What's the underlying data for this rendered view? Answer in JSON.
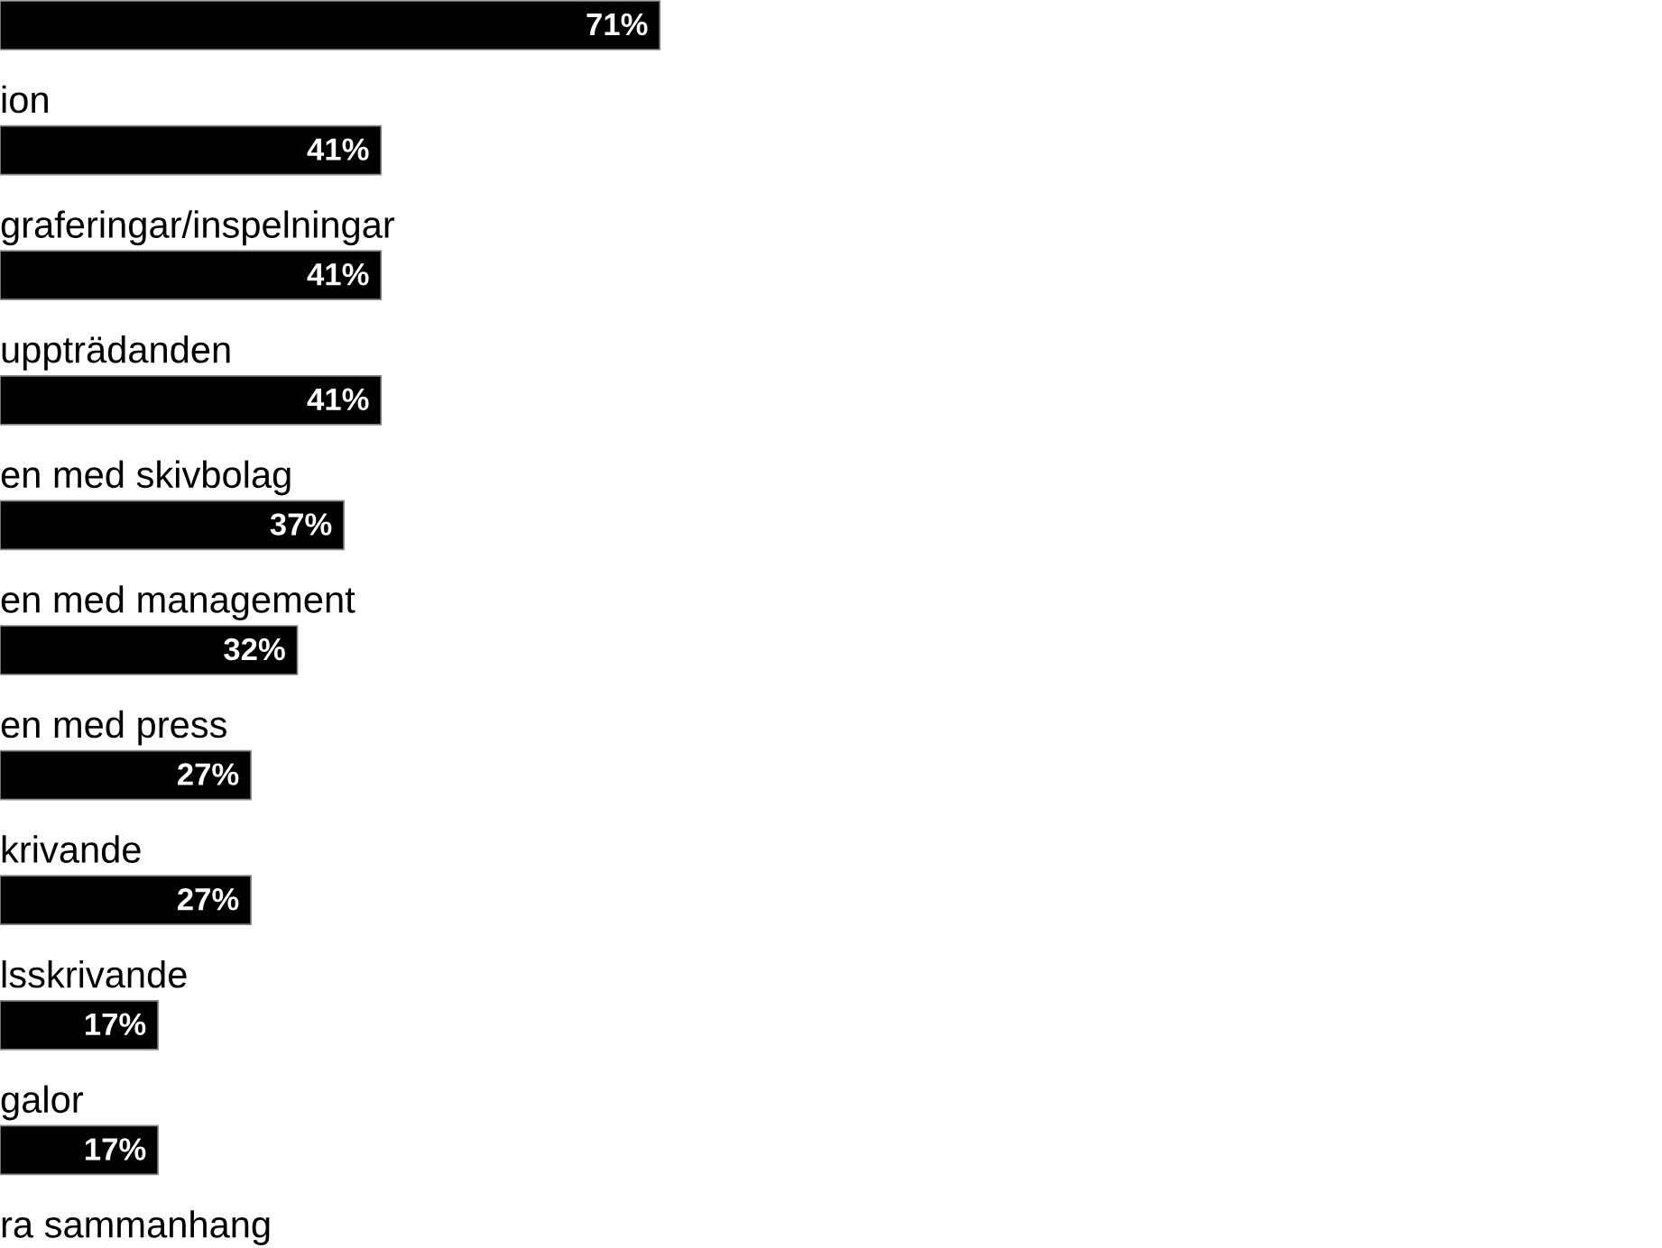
{
  "chart_data": {
    "type": "bar",
    "orientation": "horizontal",
    "categories": [
      null,
      "ion",
      "graferingar/inspelningar",
      "uppträdanden",
      "en med skivbolag",
      "en med management",
      "en med press",
      "krivande",
      "lsskrivande",
      "galor",
      "ra sammanhang"
    ],
    "values": [
      71,
      41,
      41,
      41,
      37,
      32,
      27,
      27,
      17,
      17,
      null
    ],
    "value_labels": [
      "71%",
      "41%",
      "41%",
      "41%",
      "37%",
      "32%",
      "27%",
      "27%",
      "17%",
      "17%",
      null
    ],
    "color": "#000000"
  }
}
